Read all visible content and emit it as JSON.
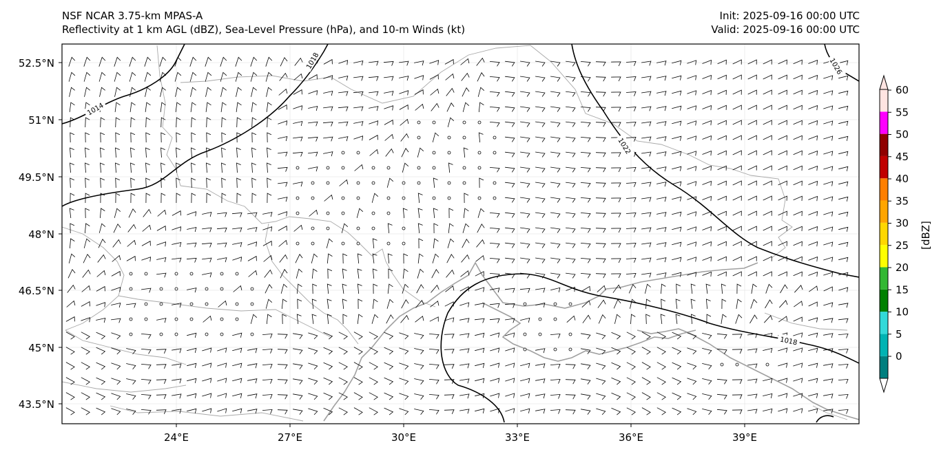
{
  "header": {
    "model": "NSF NCAR 3.75-km MPAS-A",
    "fields": "Reflectivity at 1 km AGL (dBZ), Sea-Level Pressure (hPa), and 10-m Winds (kt)",
    "init": "Init: 2025-09-16 00:00 UTC",
    "valid": "Valid: 2025-09-16 00:00 UTC"
  },
  "map": {
    "lon_range": [
      21,
      42
    ],
    "lat_range": [
      43.0,
      53.0
    ],
    "lon_ticks": [
      "24°E",
      "27°E",
      "30°E",
      "33°E",
      "36°E",
      "39°E"
    ],
    "lat_ticks": [
      "52.5°N",
      "51°N",
      "49.5°N",
      "48°N",
      "46.5°N",
      "45°N",
      "43.5°N"
    ],
    "isobar_labels": [
      "1014",
      "1018",
      "1022",
      "1026",
      "1018"
    ]
  },
  "colorbar": {
    "label": "[dBZ]",
    "ticks": [
      "0",
      "5",
      "10",
      "15",
      "20",
      "25",
      "30",
      "35",
      "40",
      "45",
      "50",
      "55",
      "60"
    ],
    "colors": [
      "#007f7f",
      "#00b3b3",
      "#33d9d9",
      "#008000",
      "#33b833",
      "#ffff00",
      "#ffd700",
      "#ffa500",
      "#ff7f00",
      "#c00000",
      "#900000",
      "#ff00ff",
      "#ffe4e1"
    ]
  }
}
